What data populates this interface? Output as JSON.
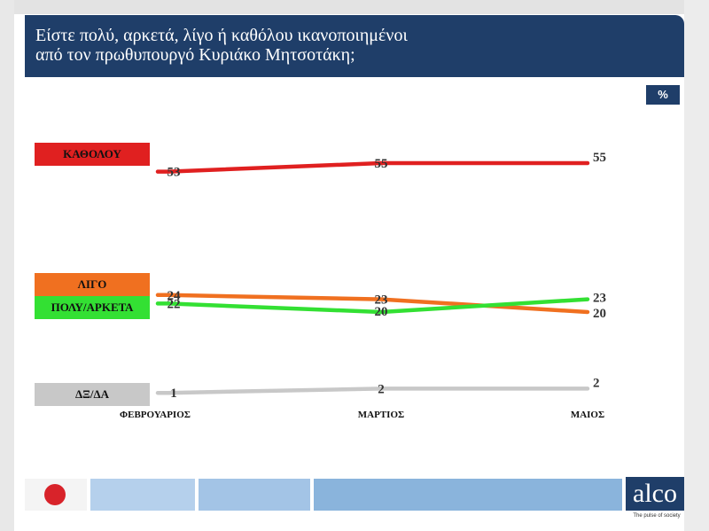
{
  "header": {
    "title_line1": "Είστε πολύ, αρκετά, λίγο ή καθόλου ικανοποιημένοι",
    "title_line2": "από τον πρωθυπουργό Κυριάκο Μητσοτάκη;"
  },
  "unit": "%",
  "footer": {
    "brand": "alco",
    "tagline": "The pulse of society",
    "colors": {
      "navy": "#1f3e69",
      "light_blue": "#a8c8e8",
      "mid_blue": "#8ab4dc",
      "logo_red": "#d8232a"
    }
  },
  "chart_data": {
    "type": "line",
    "categories": [
      "ΦΕΒΡΟΥΑΡΙΟΣ",
      "ΜΑΡΤΙΟΣ",
      "ΜΑΙΟΣ"
    ],
    "series": [
      {
        "name": "ΚΑΘΟΛΟΥ",
        "values": [
          53,
          55,
          55
        ],
        "color": "#e02020",
        "label_bg": "#e02020"
      },
      {
        "name": "ΛΙΓΟ",
        "values": [
          24,
          23,
          20
        ],
        "color": "#f07020",
        "label_bg": "#f07020"
      },
      {
        "name": "ΠΟΛΥ/ΑΡΚΕΤΑ",
        "values": [
          22,
          20,
          23
        ],
        "color": "#33e033",
        "label_bg": "#33e033"
      },
      {
        "name": "ΔΞ/ΔΑ",
        "values": [
          1,
          2,
          2
        ],
        "color": "#c8c8c8",
        "label_bg": "#c8c8c8"
      }
    ],
    "ylim": [
      0,
      60
    ],
    "grid": false,
    "legend": "left"
  }
}
